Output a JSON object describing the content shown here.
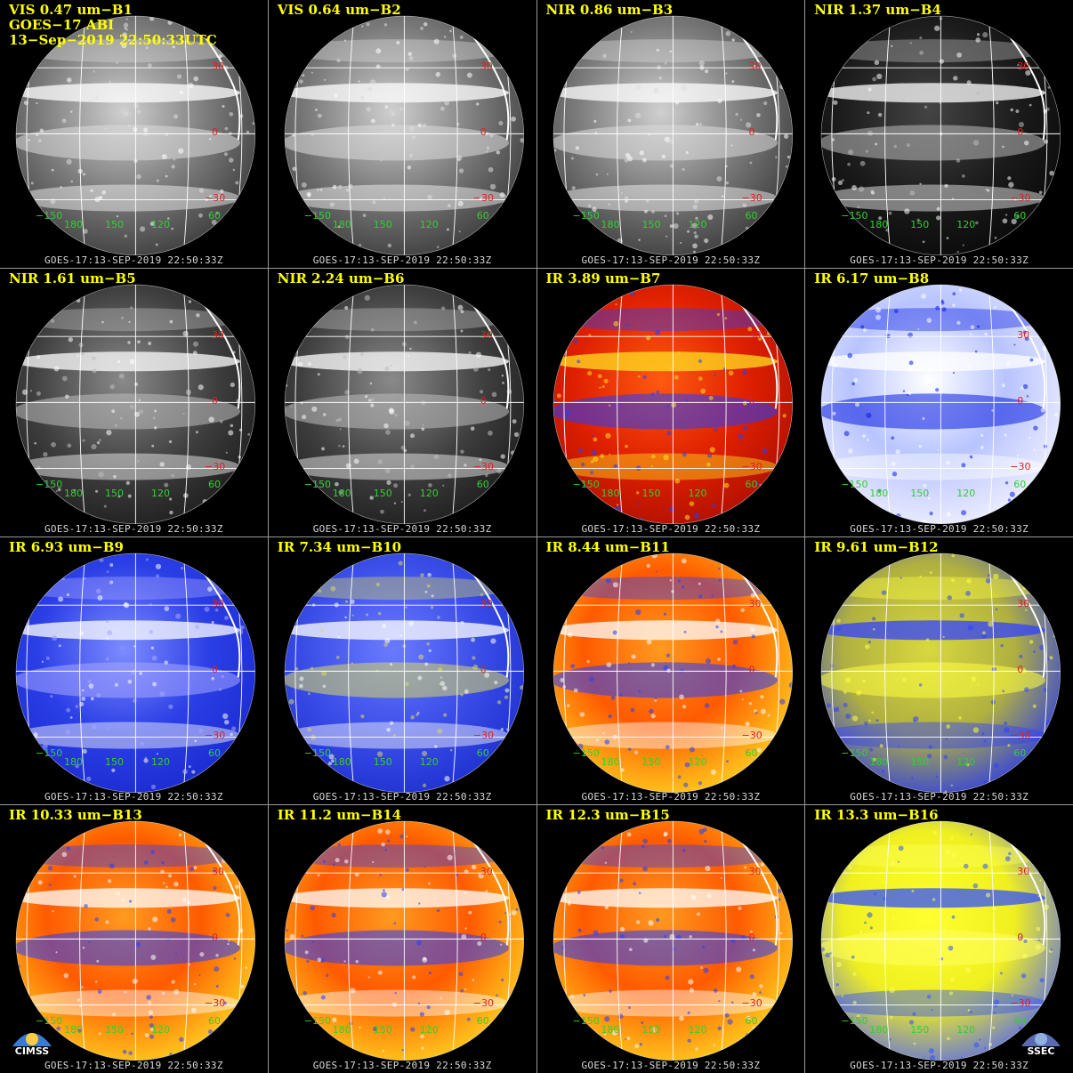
{
  "header": {
    "line1": "VIS 0.47 um−B1",
    "line2": "GOES−17 ABI",
    "line3": "13−Sep−2019 22:50:33UTC"
  },
  "stamp": "GOES-17:13-SEP-2019 22:50:33Z",
  "lat_labels": [
    "30",
    "0",
    "−30"
  ],
  "lon_labels": [
    "−150",
    "180",
    "150",
    "120",
    "60"
  ],
  "logos": {
    "left": "CIMSS",
    "right": "SSEC"
  },
  "colors": {
    "label": "#ffff00",
    "lat": "#e02020",
    "lon": "#30d030",
    "grid": "#ffffff"
  },
  "panels": [
    {
      "label": "VIS 0.47 um−B1",
      "scheme": "gray"
    },
    {
      "label": "VIS 0.64 um−B2",
      "scheme": "gray"
    },
    {
      "label": "NIR 0.86 um−B3",
      "scheme": "gray"
    },
    {
      "label": "NIR 1.37 um−B4",
      "scheme": "dark"
    },
    {
      "label": "NIR 1.61 um−B5",
      "scheme": "darkgray"
    },
    {
      "label": "NIR 2.24 um−B6",
      "scheme": "darkgray"
    },
    {
      "label": "IR 3.89 um−B7",
      "scheme": "red"
    },
    {
      "label": "IR 6.17 um−B8",
      "scheme": "bluewhite"
    },
    {
      "label": "IR 6.93 um−B9",
      "scheme": "blue"
    },
    {
      "label": "IR 7.34 um−B10",
      "scheme": "blueyellow"
    },
    {
      "label": "IR 8.44 um−B11",
      "scheme": "orange"
    },
    {
      "label": "IR 9.61 um−B12",
      "scheme": "yellowblue"
    },
    {
      "label": "IR 10.33 um−B13",
      "scheme": "orange"
    },
    {
      "label": "IR 11.2 um−B14",
      "scheme": "orange"
    },
    {
      "label": "IR 12.3 um−B15",
      "scheme": "orange"
    },
    {
      "label": "IR 13.3 um−B16",
      "scheme": "yellow"
    }
  ]
}
